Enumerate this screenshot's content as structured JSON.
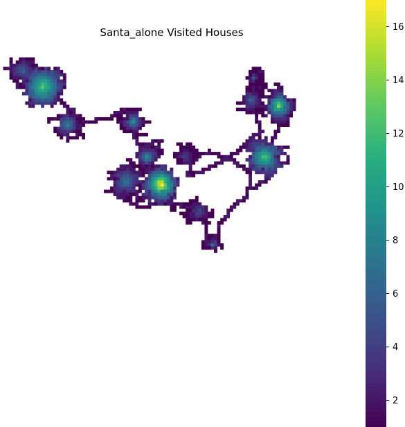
{
  "chart_data": {
    "type": "heatmap",
    "title": "Santa_alone Visited Houses",
    "xlabel": "",
    "ylabel": "",
    "colormap": "viridis",
    "value_range": [
      1,
      17
    ],
    "colorbar_ticks": [
      2,
      4,
      6,
      8,
      10,
      12,
      14,
      16
    ],
    "grid": false,
    "axes_visible": false,
    "legend": "colorbar-right",
    "clusters": [
      {
        "center": [
          0.12,
          0.16
        ],
        "size": 0.11,
        "peak": 13
      },
      {
        "center": [
          0.06,
          0.1
        ],
        "size": 0.06,
        "peak": 6
      },
      {
        "center": [
          0.19,
          0.3
        ],
        "size": 0.06,
        "peak": 8
      },
      {
        "center": [
          0.38,
          0.29
        ],
        "size": 0.05,
        "peak": 9
      },
      {
        "center": [
          0.36,
          0.51
        ],
        "size": 0.08,
        "peak": 7
      },
      {
        "center": [
          0.46,
          0.52
        ],
        "size": 0.09,
        "peak": 17
      },
      {
        "center": [
          0.42,
          0.42
        ],
        "size": 0.05,
        "peak": 9
      },
      {
        "center": [
          0.57,
          0.62
        ],
        "size": 0.05,
        "peak": 5
      },
      {
        "center": [
          0.61,
          0.74
        ],
        "size": 0.03,
        "peak": 7
      },
      {
        "center": [
          0.76,
          0.42
        ],
        "size": 0.1,
        "peak": 12
      },
      {
        "center": [
          0.8,
          0.23
        ],
        "size": 0.07,
        "peak": 14
      },
      {
        "center": [
          0.72,
          0.21
        ],
        "size": 0.05,
        "peak": 6
      },
      {
        "center": [
          0.73,
          0.13
        ],
        "size": 0.03,
        "peak": 5
      },
      {
        "center": [
          0.53,
          0.42
        ],
        "size": 0.04,
        "peak": 4
      }
    ],
    "path": [
      [
        0.01,
        0.1
      ],
      [
        0.06,
        0.08
      ],
      [
        0.12,
        0.12
      ],
      [
        0.17,
        0.21
      ],
      [
        0.24,
        0.29
      ],
      [
        0.31,
        0.28
      ],
      [
        0.36,
        0.24
      ],
      [
        0.38,
        0.33
      ],
      [
        0.4,
        0.38
      ],
      [
        0.46,
        0.36
      ],
      [
        0.42,
        0.47
      ],
      [
        0.35,
        0.48
      ],
      [
        0.32,
        0.55
      ],
      [
        0.4,
        0.61
      ],
      [
        0.48,
        0.58
      ],
      [
        0.52,
        0.6
      ],
      [
        0.58,
        0.62
      ],
      [
        0.59,
        0.7
      ],
      [
        0.61,
        0.76
      ],
      [
        0.63,
        0.67
      ],
      [
        0.67,
        0.6
      ],
      [
        0.71,
        0.57
      ],
      [
        0.72,
        0.48
      ],
      [
        0.65,
        0.42
      ],
      [
        0.6,
        0.4
      ],
      [
        0.55,
        0.43
      ],
      [
        0.54,
        0.49
      ],
      [
        0.62,
        0.45
      ],
      [
        0.7,
        0.38
      ],
      [
        0.75,
        0.32
      ],
      [
        0.73,
        0.24
      ],
      [
        0.73,
        0.17
      ],
      [
        0.72,
        0.13
      ],
      [
        0.75,
        0.11
      ],
      [
        0.76,
        0.16
      ],
      [
        0.7,
        0.2
      ],
      [
        0.76,
        0.2
      ],
      [
        0.83,
        0.24
      ],
      [
        0.8,
        0.32
      ],
      [
        0.76,
        0.4
      ],
      [
        0.78,
        0.48
      ],
      [
        0.73,
        0.54
      ]
    ]
  }
}
